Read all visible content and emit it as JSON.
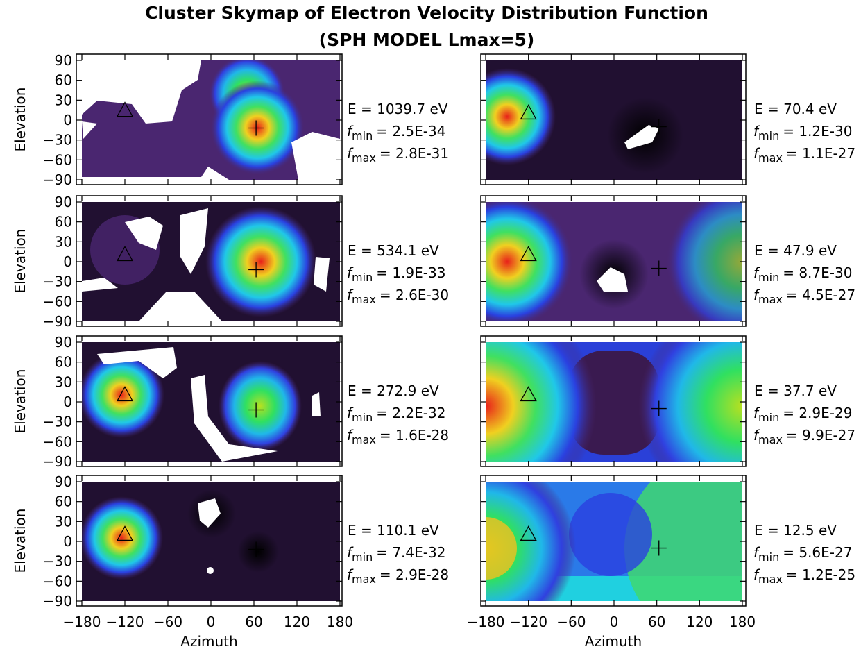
{
  "title": "Cluster Skymap of Electron Velocity Distribution Function",
  "subtitle": "(SPH MODEL  Lmax=5)",
  "x_label": "Azimuth",
  "y_label": "Elevation",
  "f_symbol": "f",
  "min_sub": "min",
  "max_sub": "max",
  "xlim": [
    -180,
    180
  ],
  "xticks": [
    {
      "value": -180,
      "label": "−180"
    },
    {
      "value": -120,
      "label": "−120"
    },
    {
      "value": -60,
      "label": "−60"
    },
    0,
    60,
    120,
    180
  ],
  "ylim": [
    -90,
    90
  ],
  "yticks": [
    {
      "value": -90,
      "label": "−90"
    },
    {
      "value": -60,
      "label": "−60"
    },
    {
      "value": -30,
      "label": "−30"
    },
    0,
    30,
    60,
    90
  ],
  "panels": [
    {
      "energy": "E = 1039.7 eV",
      "f_min": "= 2.5E-34",
      "f_max": "= 2.8E-31",
      "triangle": {
        "azimuth": -120,
        "elevation": 14
      },
      "plus": {
        "azimuth": 63,
        "elevation": -12
      }
    },
    {
      "energy": "E = 534.1 eV",
      "f_min": "= 1.9E-33",
      "f_max": "= 2.6E-30",
      "triangle": {
        "azimuth": -120,
        "elevation": 10
      },
      "plus": {
        "azimuth": 63,
        "elevation": -12
      }
    },
    {
      "energy": "E = 272.9 eV",
      "f_min": "= 2.2E-32",
      "f_max": "= 1.6E-28",
      "triangle": {
        "azimuth": -120,
        "elevation": 10
      },
      "plus": {
        "azimuth": 63,
        "elevation": -12
      }
    },
    {
      "energy": "E = 110.1 eV",
      "f_min": "= 7.4E-32",
      "f_max": "= 2.9E-28",
      "triangle": {
        "azimuth": -120,
        "elevation": 10
      },
      "plus": {
        "azimuth": 63,
        "elevation": -12
      }
    },
    {
      "energy": "E = 70.4 eV",
      "f_min": "= 1.2E-30",
      "f_max": "= 1.1E-27",
      "triangle": {
        "azimuth": -120,
        "elevation": 10
      },
      "plus": {
        "azimuth": 63,
        "elevation": -10
      }
    },
    {
      "energy": "E = 47.9 eV",
      "f_min": "= 8.7E-30",
      "f_max": "= 4.5E-27",
      "triangle": {
        "azimuth": -120,
        "elevation": 10
      },
      "plus": {
        "azimuth": 63,
        "elevation": -10
      }
    },
    {
      "energy": "E = 37.7 eV",
      "f_min": "= 2.9E-29",
      "f_max": "= 9.9E-27",
      "triangle": {
        "azimuth": -120,
        "elevation": 10
      },
      "plus": {
        "azimuth": 63,
        "elevation": -10
      }
    },
    {
      "energy": "E = 12.5 eV",
      "f_min": "= 5.6E-27",
      "f_max": "= 1.2E-25",
      "triangle": {
        "azimuth": -120,
        "elevation": 10
      },
      "plus": {
        "azimuth": 63,
        "elevation": -10
      }
    }
  ]
}
